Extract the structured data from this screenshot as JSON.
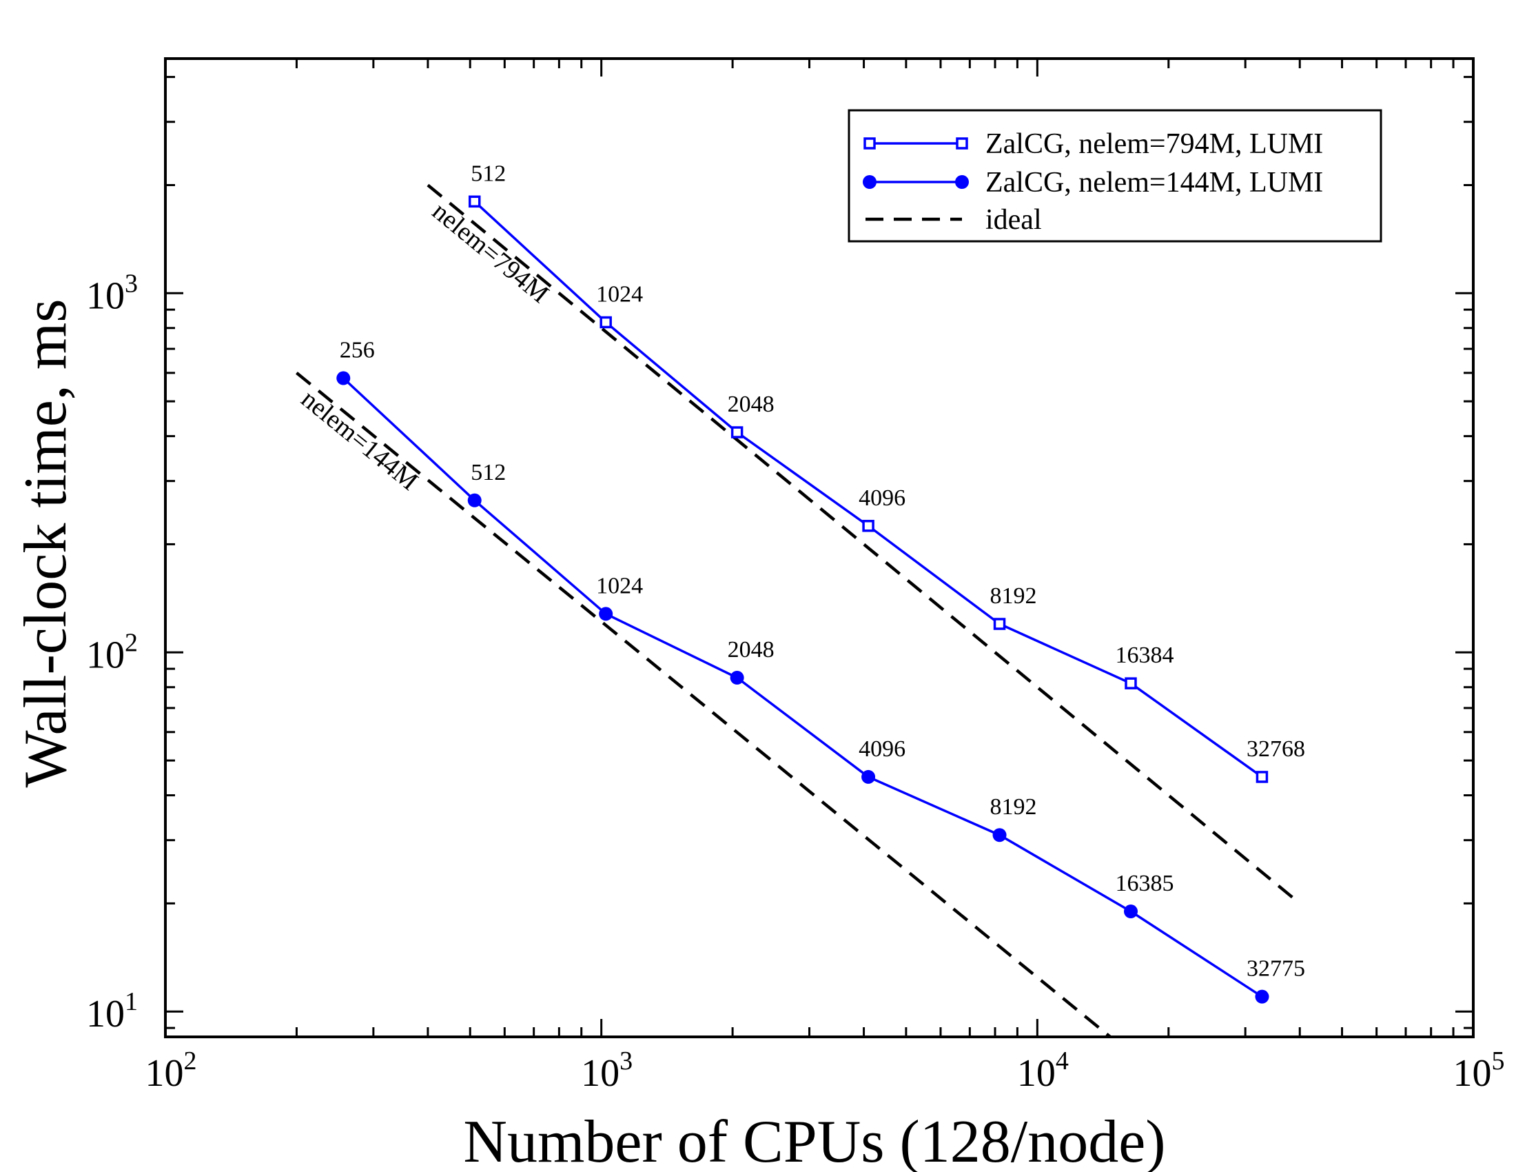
{
  "chart_data": {
    "type": "line",
    "xlabel": "Number of CPUs (128/node)",
    "ylabel": "Wall-clock time, ms",
    "xscale": "log",
    "yscale": "log",
    "xlim": [
      100,
      100000
    ],
    "ylim": [
      8.5,
      4500
    ],
    "x_ticks": [
      {
        "value": 100,
        "base": "10",
        "exp": "2"
      },
      {
        "value": 1000,
        "base": "10",
        "exp": "3"
      },
      {
        "value": 10000,
        "base": "10",
        "exp": "4"
      },
      {
        "value": 100000,
        "base": "10",
        "exp": "5"
      }
    ],
    "y_ticks": [
      {
        "value": 10,
        "base": "10",
        "exp": "1"
      },
      {
        "value": 100,
        "base": "10",
        "exp": "2"
      },
      {
        "value": 1000,
        "base": "10",
        "exp": "3"
      }
    ],
    "grid": false,
    "legend_position": "top-right",
    "colors": {
      "series": "#0000ff",
      "ideal": "#000000",
      "axes": "#000000"
    },
    "series": [
      {
        "name": "ZalCG, nelem=794M, LUMI",
        "marker": "open-square",
        "x": [
          512,
          1024,
          2048,
          4096,
          8192,
          16384,
          32768
        ],
        "y": [
          1800,
          830,
          410,
          225,
          120,
          82,
          45
        ],
        "point_labels": [
          "512",
          "1024",
          "2048",
          "4096",
          "8192",
          "16384",
          "32768"
        ]
      },
      {
        "name": "ZalCG, nelem=144M, LUMI",
        "marker": "filled-circle",
        "x": [
          256,
          512,
          1024,
          2048,
          4096,
          8192,
          16385,
          32775
        ],
        "y": [
          580,
          265,
          128,
          85,
          45,
          31,
          19,
          11
        ],
        "point_labels": [
          "256",
          "512",
          "1024",
          "2048",
          "4096",
          "8192",
          "16385",
          "32775"
        ]
      }
    ],
    "ideal_lines": [
      {
        "label": "nelem=794M",
        "x": [
          400,
          40000
        ],
        "y": [
          2000,
          20
        ]
      },
      {
        "label": "nelem=144M",
        "x": [
          200,
          14700
        ],
        "y": [
          600,
          8.5
        ]
      }
    ],
    "legend": [
      {
        "label": "ZalCG, nelem=794M, LUMI",
        "kind": "open-square"
      },
      {
        "label": "ZalCG, nelem=144M, LUMI",
        "kind": "filled-circle"
      },
      {
        "label": "ideal",
        "kind": "dashed"
      }
    ]
  }
}
